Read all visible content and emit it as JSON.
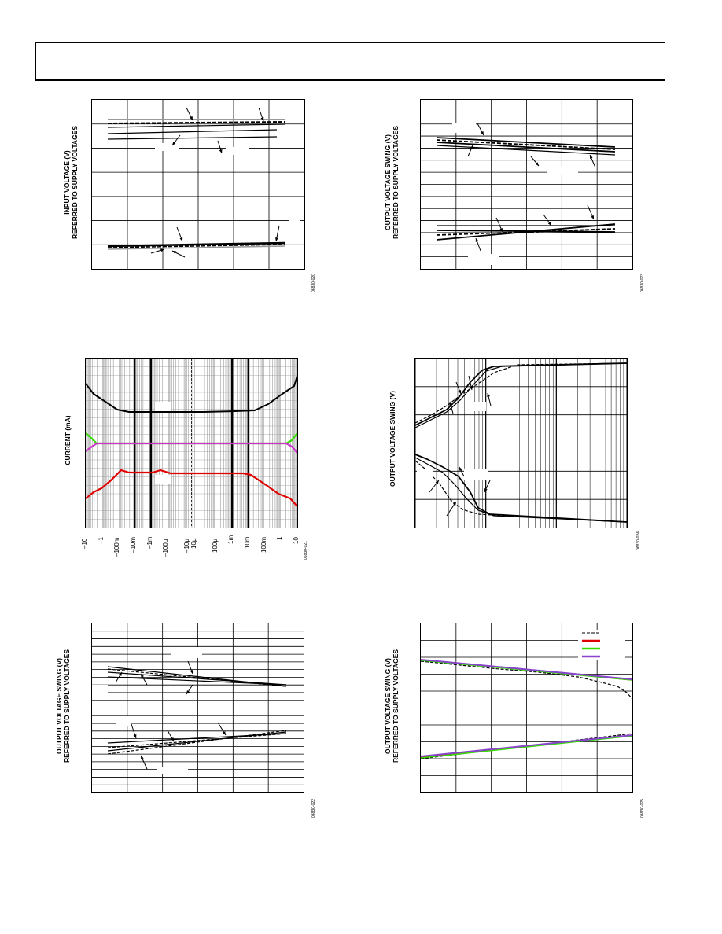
{
  "figures": [
    {
      "id": "fig-input-voltage",
      "ylabel_line1": "INPUT VOLTAGE (V)",
      "ylabel_line2": "REFERRED TO SUPPLY VOLTAGES",
      "fignum": "06830-020"
    },
    {
      "id": "fig-output-swing-top-right",
      "ylabel_line1": "OUTPUT VOLTAGE SWING (V)",
      "ylabel_line2": "REFERRED TO SUPPLY VOLTAGES",
      "fignum": "06830-023"
    },
    {
      "id": "fig-current",
      "ylabel_line1": "CURRENT (mA)",
      "fignum": "06830-021",
      "xticks": [
        "–10",
        "–1",
        "–100m",
        "–10m",
        "–1m",
        "–100µ",
        "–10µ",
        "10µ",
        "100µ",
        "1m",
        "10m",
        "100m",
        "1",
        "10"
      ]
    },
    {
      "id": "fig-output-swing-mid-right",
      "ylabel_line1": "OUTPUT VOLTAGE SWING (V)",
      "fignum": "06830-024"
    },
    {
      "id": "fig-output-swing-bottom-left",
      "ylabel_line1": "OUTPUT VOLTAGE SWING (V)",
      "ylabel_line2": "REFERRED TO SUPPLY VOLTAGES",
      "fignum": "06830-022"
    },
    {
      "id": "fig-output-swing-bottom-right",
      "ylabel_line1": "OUTPUT VOLTAGE SWING (V)",
      "ylabel_line2": "REFERRED TO SUPPLY VOLTAGES",
      "fignum": "06830-025"
    }
  ],
  "colors": {
    "black": "#000000",
    "gray": "#999999",
    "red": "#e00000",
    "green": "#33dd00",
    "magenta": "#cc33cc",
    "purple": "#8844cc"
  }
}
